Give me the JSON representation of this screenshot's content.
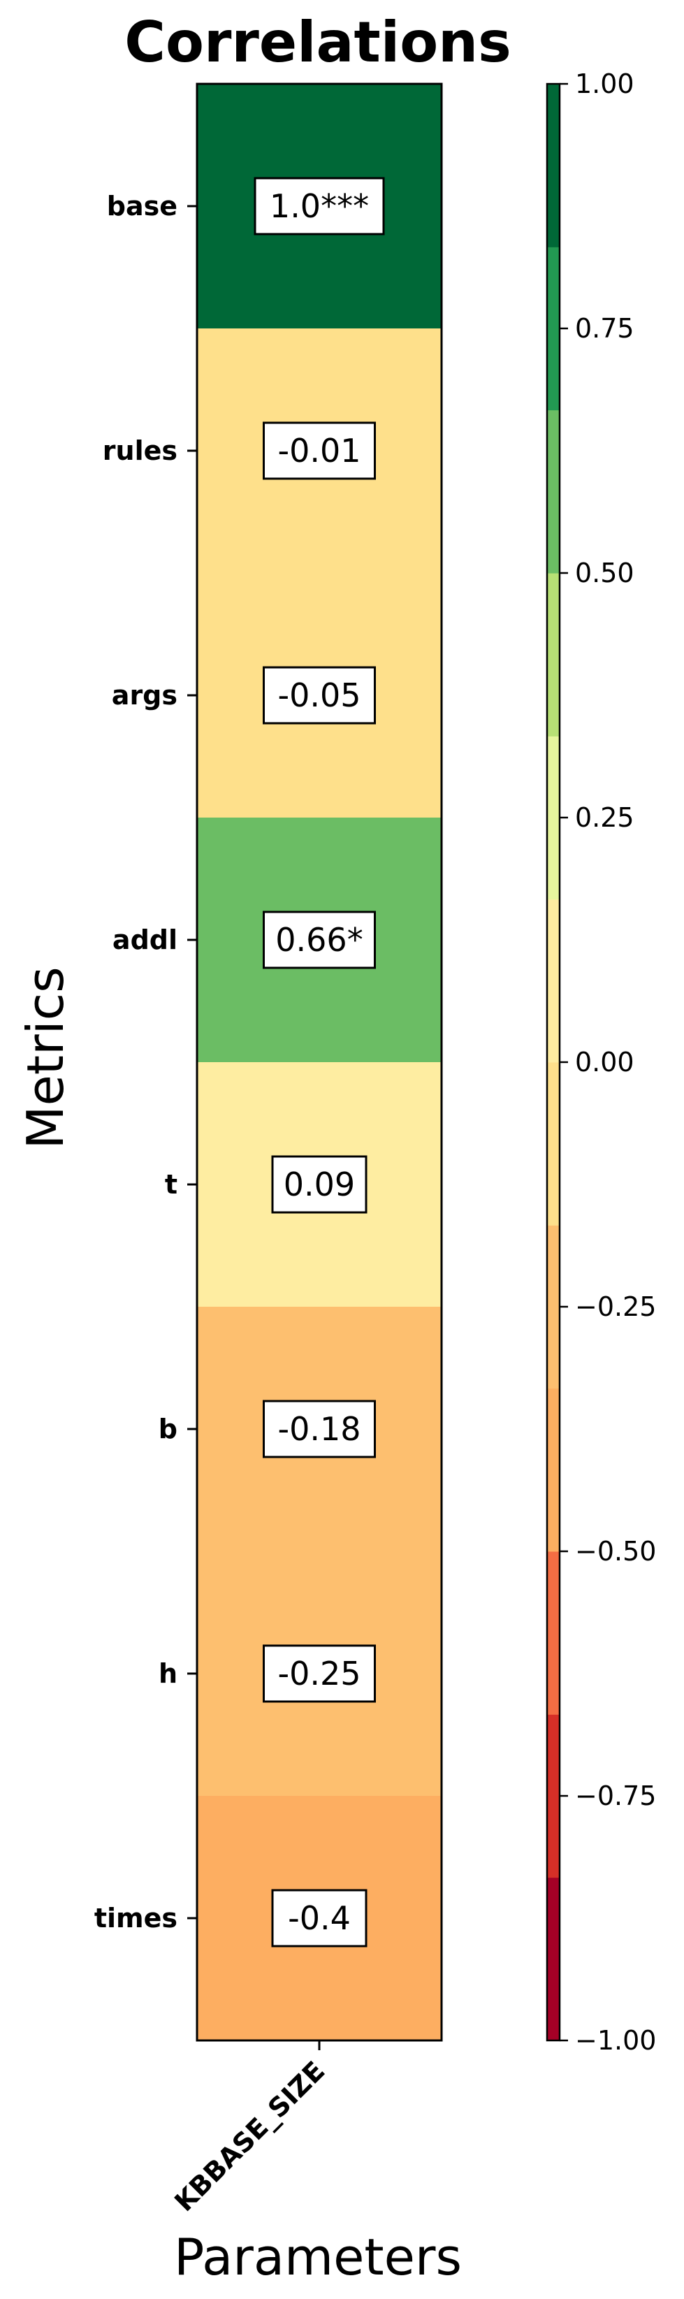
{
  "chart_data": {
    "type": "heatmap",
    "title": "Correlations",
    "xlabel": "Parameters",
    "ylabel": "Metrics",
    "x_categories": [
      "KBBASE_SIZE"
    ],
    "y_categories": [
      "base",
      "rules",
      "args",
      "addl",
      "t",
      "b",
      "h",
      "times"
    ],
    "values": [
      1.0,
      -0.01,
      -0.05,
      0.66,
      0.09,
      -0.18,
      -0.25,
      -0.4
    ],
    "cell_labels": [
      "1.0***",
      "-0.01",
      "-0.05",
      "0.66*",
      "0.09",
      "-0.18",
      "-0.25",
      "-0.4"
    ],
    "colormap": "RdYlGn",
    "color_levels": 12,
    "vmin": -1.0,
    "vmax": 1.0,
    "colorbar_ticks": [
      1.0,
      0.75,
      0.5,
      0.25,
      0.0,
      -0.25,
      -0.5,
      -0.75,
      -1.0
    ],
    "colorbar_tick_labels": [
      "1.00",
      "0.75",
      "0.50",
      "0.25",
      "0.00",
      "−0.25",
      "−0.50",
      "−0.75",
      "−1.00"
    ],
    "palette": [
      "#a50026",
      "#d62f27",
      "#f46d43",
      "#fdae61",
      "#fdbf6f",
      "#fee08b",
      "#feeda1",
      "#e6f59d",
      "#b7e075",
      "#6bbd64",
      "#229a52",
      "#006837"
    ],
    "grid": false,
    "legend": "colorbar-right"
  }
}
